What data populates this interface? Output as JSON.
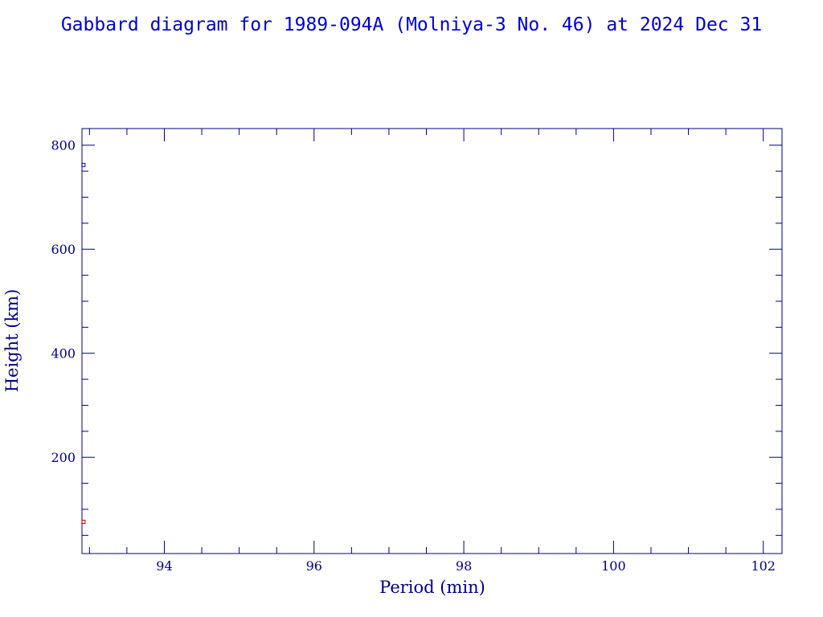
{
  "chart_data": {
    "type": "scatter",
    "title": "Gabbard diagram for 1989-094A (Molniya-3 No. 46) at 2024 Dec 31",
    "xlabel": "Period (min)",
    "ylabel": "Height (km)",
    "xlim": [
      92.9,
      102.25
    ],
    "ylim": [
      15,
      832
    ],
    "x_major_ticks": [
      94,
      96,
      98,
      100,
      102
    ],
    "x_minor_step": 0.5,
    "y_major_ticks": [
      200,
      400,
      600,
      800
    ],
    "y_minor_step": 50,
    "grid": false,
    "legend": "none",
    "series": [
      {
        "role": "apogee",
        "color": "#0000c8",
        "points": [
          {
            "x": 92.92,
            "y": 762
          }
        ]
      },
      {
        "role": "perigee",
        "color": "#c80000",
        "points": [
          {
            "x": 92.92,
            "y": 76
          }
        ]
      }
    ]
  },
  "colors": {
    "axis": "#00007f",
    "title": "#0000c8",
    "text": "#00007f"
  }
}
